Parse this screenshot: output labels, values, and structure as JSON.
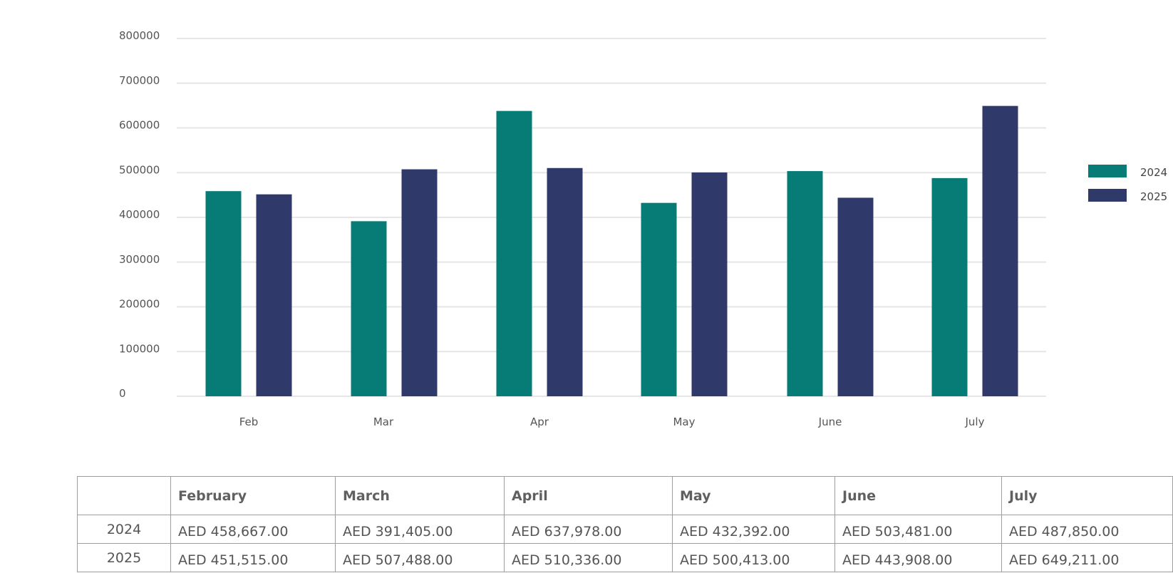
{
  "chart_data": {
    "type": "bar",
    "categories": [
      "Feb",
      "Mar",
      "Apr",
      "May",
      "June",
      "July"
    ],
    "series": [
      {
        "name": "2024",
        "color": "#077b76",
        "values": [
          458667,
          391405,
          637978,
          432392,
          503481,
          487850
        ]
      },
      {
        "name": "2025",
        "color": "#303a6a",
        "values": [
          451515,
          507488,
          510336,
          500413,
          443908,
          649211
        ]
      }
    ],
    "yticks": [
      "0",
      "100000",
      "200000",
      "300000",
      "400000",
      "500000",
      "600000",
      "700000",
      "800000"
    ],
    "ylim": [
      0,
      800000
    ],
    "grid": true,
    "legend_position": "right"
  },
  "table": {
    "columns": [
      "",
      "February",
      "March",
      "April",
      "May",
      "June",
      "July"
    ],
    "rows": [
      {
        "label": "2024",
        "cells": [
          "AED 458,667.00",
          "AED 391,405.00",
          "AED 637,978.00",
          "AED 432,392.00",
          "AED 503,481.00",
          "AED 487,850.00"
        ]
      },
      {
        "label": "2025",
        "cells": [
          "AED 451,515.00",
          "AED 507,488.00",
          "AED 510,336.00",
          "AED 500,413.00",
          "AED 443,908.00",
          "AED 649,211.00"
        ]
      }
    ]
  }
}
